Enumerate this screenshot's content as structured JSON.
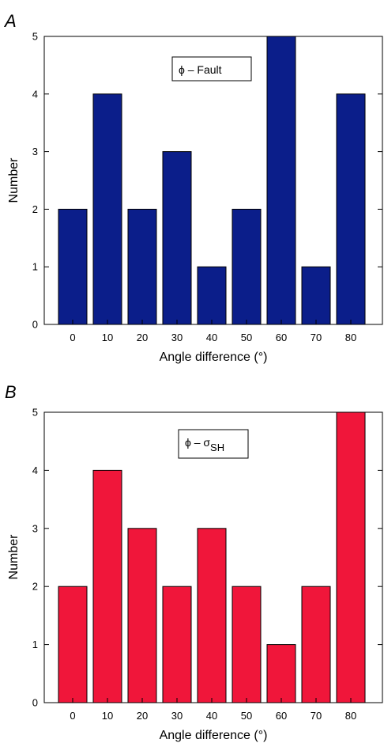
{
  "chart_data": [
    {
      "type": "bar",
      "panel_label": "A",
      "legend": "ϕ – Fault",
      "legend_parts": {
        "symbol": "ϕ – ",
        "main": "Fault",
        "sub": ""
      },
      "categories": [
        "0",
        "10",
        "20",
        "30",
        "40",
        "50",
        "60",
        "70",
        "80"
      ],
      "values": [
        2,
        4,
        2,
        3,
        1,
        2,
        5,
        1,
        4
      ],
      "xlabel": "Angle difference (°)",
      "ylabel": "Number",
      "ylim": [
        0,
        5
      ],
      "yticks": [
        "0",
        "1",
        "2",
        "3",
        "4",
        "5"
      ],
      "bar_color": "#0b1e8a",
      "grid": false
    },
    {
      "type": "bar",
      "panel_label": "B",
      "legend": "ϕ – σSH",
      "legend_parts": {
        "symbol": "ϕ – ",
        "main": "σ",
        "sub": "SH"
      },
      "categories": [
        "0",
        "10",
        "20",
        "30",
        "40",
        "50",
        "60",
        "70",
        "80"
      ],
      "values": [
        2,
        4,
        3,
        2,
        3,
        2,
        1,
        2,
        5
      ],
      "xlabel": "Angle difference (°)",
      "ylabel": "Number",
      "ylim": [
        0,
        5
      ],
      "yticks": [
        "0",
        "1",
        "2",
        "3",
        "4",
        "5"
      ],
      "bar_color": "#f0163a",
      "grid": false
    }
  ]
}
